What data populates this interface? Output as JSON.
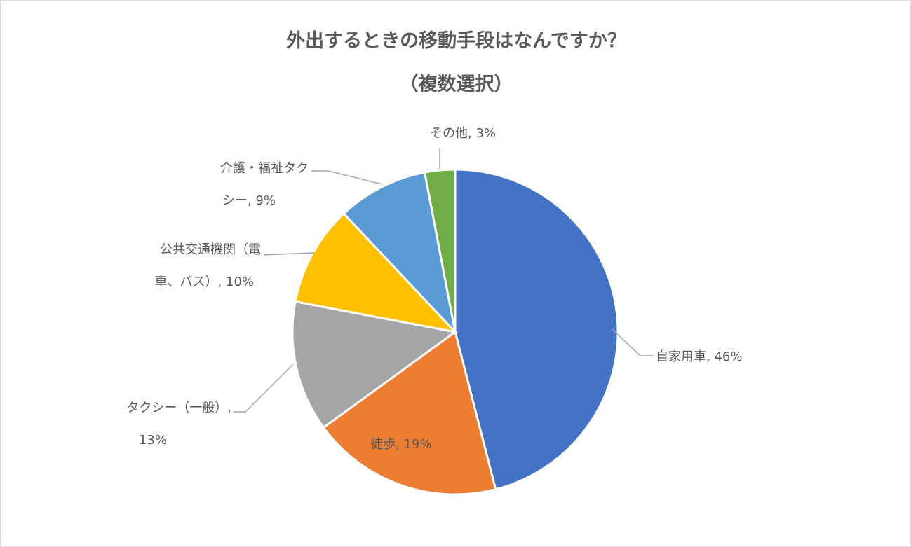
{
  "chart_data": {
    "type": "pie",
    "title_line1": "外出するときの移動手段はなんですか？",
    "title_line2": "（複数選択）",
    "slices": [
      {
        "name": "自家用車",
        "value": 46,
        "color": "#4472C4",
        "label_lines": [
          "自家用車, 46%"
        ]
      },
      {
        "name": "徒歩",
        "value": 19,
        "color": "#ED7D31",
        "label_lines": [
          "徒歩, 19%"
        ]
      },
      {
        "name": "タクシー（一般）",
        "value": 13,
        "color": "#A5A5A5",
        "label_lines": [
          "タクシー（一般）,",
          "13%"
        ]
      },
      {
        "name": "公共交通機関（電車、バス）",
        "value": 10,
        "color": "#FFC000",
        "label_lines": [
          "公共交通機関（電",
          "車、バス）, 10%"
        ]
      },
      {
        "name": "介護・福祉タクシー",
        "value": 9,
        "color": "#5B9BD5",
        "label_lines": [
          "介護・福祉タク",
          "シー, 9%"
        ]
      },
      {
        "name": "その他",
        "value": 3,
        "color": "#70AD47",
        "label_lines": [
          "その他, 3%"
        ]
      }
    ]
  }
}
